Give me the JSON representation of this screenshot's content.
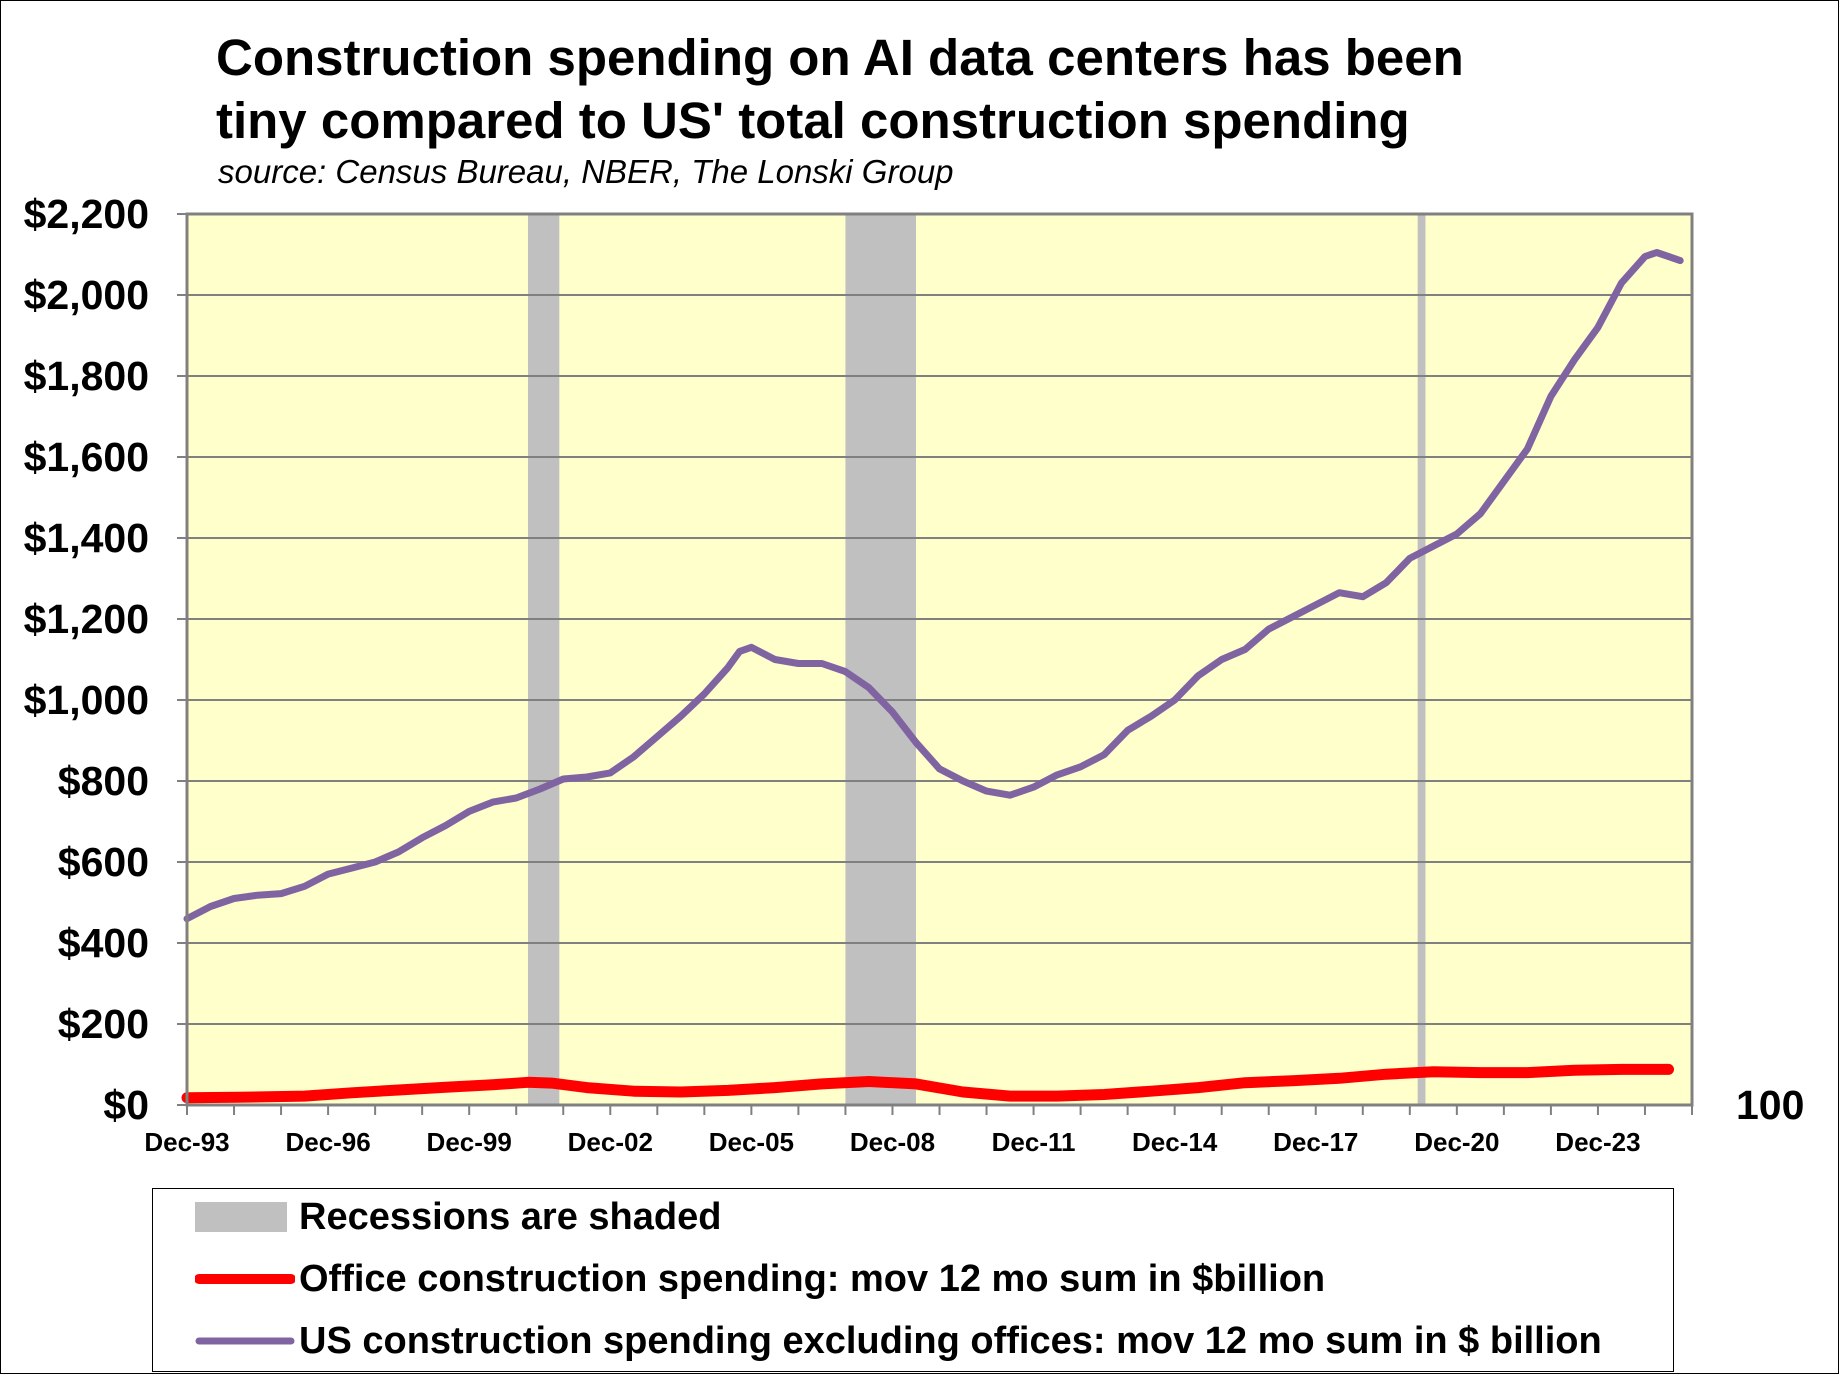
{
  "title": "Construction spending on AI data centers has been\ntiny compared to US' total construction spending",
  "source": "source: Census Bureau, NBER, The Lonski Group",
  "colors": {
    "plot_background": "#ffffcc",
    "recession": "#c0c0c0",
    "office_series": "#ff0000",
    "us_series": "#8064a2",
    "gridline": "#808080"
  },
  "legend": {
    "recession_label": "Recessions are shaded",
    "office_label": "Office construction spending: mov 12 mo sum in $billion",
    "us_label": "US construction spending excluding offices: mov 12 mo sum in $ billion"
  },
  "chart_data": {
    "type": "line",
    "title": "Construction spending on AI data centers has been tiny compared to US' total construction spending",
    "subtitle": "source: Census Bureau, NBER, The Lonski Group",
    "x_tick_labels": [
      "Dec-93",
      "Dec-96",
      "Dec-99",
      "Dec-02",
      "Dec-05",
      "Dec-08",
      "Dec-11",
      "Dec-14",
      "Dec-17",
      "Dec-20",
      "Dec-23"
    ],
    "y_tick_labels": [
      "$0",
      "$200",
      "$400",
      "$600",
      "$800",
      "$1,000",
      "$1,200",
      "$1,400",
      "$1,600",
      "$1,800",
      "$2,000",
      "$2,200"
    ],
    "right_axis_label": "100",
    "ylim": [
      0,
      2200
    ],
    "xlim": [
      "1993-12",
      "2025-12"
    ],
    "grid": true,
    "legend_position": "bottom",
    "recessions": [
      {
        "start": "2001-03",
        "end": "2001-11"
      },
      {
        "start": "2007-12",
        "end": "2009-06"
      },
      {
        "start": "2020-02",
        "end": "2020-04"
      }
    ],
    "series": [
      {
        "name": "Office construction spending: mov 12 mo sum in $billion",
        "points": [
          [
            "1993-12",
            18
          ],
          [
            "1995-01",
            19
          ],
          [
            "1996-06",
            22
          ],
          [
            "1997-06",
            30
          ],
          [
            "1998-06",
            37
          ],
          [
            "1999-06",
            44
          ],
          [
            "2000-06",
            50
          ],
          [
            "2001-03",
            56
          ],
          [
            "2001-09",
            54
          ],
          [
            "2002-06",
            43
          ],
          [
            "2003-06",
            34
          ],
          [
            "2004-06",
            32
          ],
          [
            "2005-06",
            36
          ],
          [
            "2006-06",
            43
          ],
          [
            "2007-06",
            52
          ],
          [
            "2008-06",
            58
          ],
          [
            "2009-06",
            52
          ],
          [
            "2010-06",
            32
          ],
          [
            "2011-06",
            22
          ],
          [
            "2012-06",
            22
          ],
          [
            "2013-06",
            26
          ],
          [
            "2014-06",
            34
          ],
          [
            "2015-06",
            43
          ],
          [
            "2016-06",
            55
          ],
          [
            "2017-06",
            60
          ],
          [
            "2018-06",
            66
          ],
          [
            "2019-06",
            76
          ],
          [
            "2020-06",
            82
          ],
          [
            "2021-06",
            80
          ],
          [
            "2022-06",
            80
          ],
          [
            "2023-06",
            86
          ],
          [
            "2024-06",
            88
          ],
          [
            "2025-06",
            88
          ]
        ]
      },
      {
        "name": "US construction spending excluding offices: mov 12 mo sum in $ billion",
        "points": [
          [
            "1993-12",
            460
          ],
          [
            "1994-06",
            490
          ],
          [
            "1994-12",
            510
          ],
          [
            "1995-06",
            518
          ],
          [
            "1995-12",
            522
          ],
          [
            "1996-06",
            540
          ],
          [
            "1996-12",
            570
          ],
          [
            "1997-06",
            585
          ],
          [
            "1997-12",
            600
          ],
          [
            "1998-06",
            625
          ],
          [
            "1998-12",
            660
          ],
          [
            "1999-06",
            690
          ],
          [
            "1999-12",
            725
          ],
          [
            "2000-06",
            748
          ],
          [
            "2000-12",
            758
          ],
          [
            "2001-06",
            780
          ],
          [
            "2001-12",
            805
          ],
          [
            "2002-06",
            810
          ],
          [
            "2002-12",
            820
          ],
          [
            "2003-06",
            860
          ],
          [
            "2003-12",
            910
          ],
          [
            "2004-06",
            960
          ],
          [
            "2004-12",
            1015
          ],
          [
            "2005-06",
            1080
          ],
          [
            "2005-09",
            1120
          ],
          [
            "2005-12",
            1130
          ],
          [
            "2006-06",
            1100
          ],
          [
            "2006-12",
            1090
          ],
          [
            "2007-06",
            1090
          ],
          [
            "2007-12",
            1070
          ],
          [
            "2008-06",
            1030
          ],
          [
            "2008-12",
            970
          ],
          [
            "2009-06",
            895
          ],
          [
            "2009-12",
            830
          ],
          [
            "2010-06",
            800
          ],
          [
            "2010-12",
            775
          ],
          [
            "2011-06",
            765
          ],
          [
            "2011-12",
            785
          ],
          [
            "2012-06",
            815
          ],
          [
            "2012-12",
            835
          ],
          [
            "2013-06",
            865
          ],
          [
            "2013-12",
            925
          ],
          [
            "2014-06",
            960
          ],
          [
            "2014-12",
            1000
          ],
          [
            "2015-06",
            1060
          ],
          [
            "2015-12",
            1100
          ],
          [
            "2016-06",
            1125
          ],
          [
            "2016-12",
            1175
          ],
          [
            "2017-06",
            1205
          ],
          [
            "2017-12",
            1235
          ],
          [
            "2018-06",
            1265
          ],
          [
            "2018-12",
            1255
          ],
          [
            "2019-06",
            1290
          ],
          [
            "2019-12",
            1350
          ],
          [
            "2020-06",
            1380
          ],
          [
            "2020-12",
            1410
          ],
          [
            "2021-06",
            1460
          ],
          [
            "2021-12",
            1540
          ],
          [
            "2022-06",
            1620
          ],
          [
            "2022-12",
            1750
          ],
          [
            "2023-06",
            1840
          ],
          [
            "2023-12",
            1920
          ],
          [
            "2024-06",
            2030
          ],
          [
            "2024-12",
            2095
          ],
          [
            "2025-03",
            2105
          ],
          [
            "2025-06",
            2095
          ],
          [
            "2025-09",
            2085
          ]
        ]
      }
    ]
  }
}
